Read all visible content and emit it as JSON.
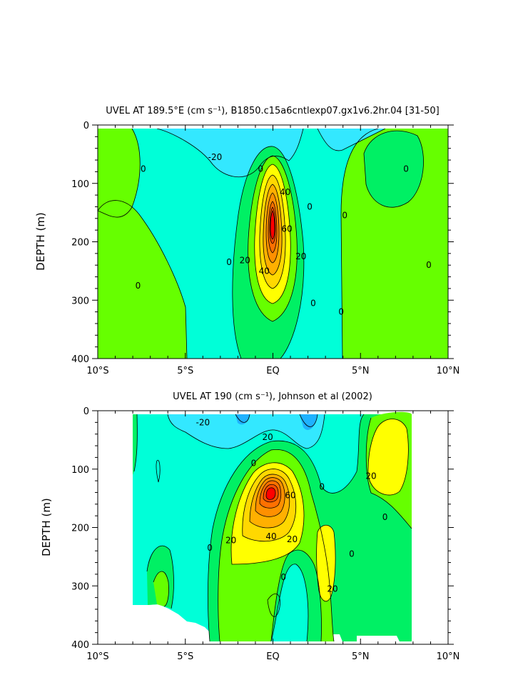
{
  "chart_data": [
    {
      "type": "heatmap",
      "title": "UVEL AT 189.5°E (cm s⁻¹), B1850.c15a6cntlexp07.gx1v6.2hr.04 [31-50]",
      "xlabel": "",
      "ylabel": "DEPTH (m)",
      "xlim": [
        -10,
        10
      ],
      "ylim": [
        400,
        0
      ],
      "x_ticks": [
        -10,
        -5,
        0,
        5,
        10
      ],
      "x_tick_labels": [
        "10°S",
        "5°S",
        "EQ",
        "5°N",
        "10°N"
      ],
      "y_ticks": [
        0,
        100,
        200,
        300,
        400
      ],
      "y_tick_labels": [
        "0",
        "100",
        "200",
        "300",
        "400"
      ],
      "contour_interval": 10,
      "contour_labels": [
        {
          "text": "-20",
          "lat": -3.3,
          "depth": 55
        },
        {
          "text": "0",
          "lat": -7.4,
          "depth": 75
        },
        {
          "text": "0",
          "lat": -0.7,
          "depth": 75
        },
        {
          "text": "0",
          "lat": 7.6,
          "depth": 75
        },
        {
          "text": "40",
          "lat": 0.7,
          "depth": 115
        },
        {
          "text": "0",
          "lat": 2.1,
          "depth": 140
        },
        {
          "text": "0",
          "lat": 4.1,
          "depth": 155
        },
        {
          "text": "60",
          "lat": 0.8,
          "depth": 178
        },
        {
          "text": "0",
          "lat": -2.5,
          "depth": 235
        },
        {
          "text": "20",
          "lat": -1.6,
          "depth": 232
        },
        {
          "text": "20",
          "lat": 1.6,
          "depth": 225
        },
        {
          "text": "40",
          "lat": -0.5,
          "depth": 250
        },
        {
          "text": "0",
          "lat": 8.9,
          "depth": 240
        },
        {
          "text": "0",
          "lat": -7.7,
          "depth": 275
        },
        {
          "text": "0",
          "lat": 2.3,
          "depth": 305
        },
        {
          "text": "0",
          "lat": 3.9,
          "depth": 320
        }
      ],
      "max_value": 90,
      "min_value": -30
    },
    {
      "type": "heatmap",
      "title": "UVEL AT 190 (cm s⁻¹), Johnson et al (2002)",
      "xlabel": "",
      "ylabel": "DEPTH (m)",
      "xlim": [
        -10,
        10
      ],
      "ylim": [
        400,
        0
      ],
      "x_ticks": [
        -10,
        -5,
        0,
        5,
        10
      ],
      "x_tick_labels": [
        "10°S",
        "5°S",
        "EQ",
        "5°N",
        "10°N"
      ],
      "y_ticks": [
        0,
        100,
        200,
        300,
        400
      ],
      "y_tick_labels": [
        "0",
        "100",
        "200",
        "300",
        "400"
      ],
      "data_lat_range": [
        -8,
        8
      ],
      "contour_interval": 10,
      "contour_labels": [
        {
          "text": "-20",
          "lat": -4.0,
          "depth": 20
        },
        {
          "text": "20",
          "lat": -0.3,
          "depth": 45
        },
        {
          "text": "0",
          "lat": -1.1,
          "depth": 90
        },
        {
          "text": "0",
          "lat": 2.8,
          "depth": 130
        },
        {
          "text": "60",
          "lat": 1.0,
          "depth": 145
        },
        {
          "text": "20",
          "lat": 5.6,
          "depth": 112
        },
        {
          "text": "0",
          "lat": 6.4,
          "depth": 182
        },
        {
          "text": "40",
          "lat": -0.1,
          "depth": 215
        },
        {
          "text": "20",
          "lat": -2.4,
          "depth": 222
        },
        {
          "text": "20",
          "lat": 1.1,
          "depth": 220
        },
        {
          "text": "0",
          "lat": -3.6,
          "depth": 235
        },
        {
          "text": "0",
          "lat": 4.5,
          "depth": 245
        },
        {
          "text": "0",
          "lat": 0.6,
          "depth": 285
        },
        {
          "text": "20",
          "lat": 3.4,
          "depth": 305
        }
      ],
      "max_value": 90,
      "min_value": -30
    }
  ],
  "colors": {
    "m30": "#1fb2ff",
    "m20": "#33e8ff",
    "m10": "#00ffd8",
    "p0": "#00f064",
    "p10": "#66ff00",
    "p20": "#ffff00",
    "p30": "#ffd800",
    "p40": "#ffb000",
    "p50": "#ff9000",
    "p60": "#ff7000",
    "p70": "#ff5000",
    "p80": "#ff2000",
    "p90": "#ff0000"
  }
}
